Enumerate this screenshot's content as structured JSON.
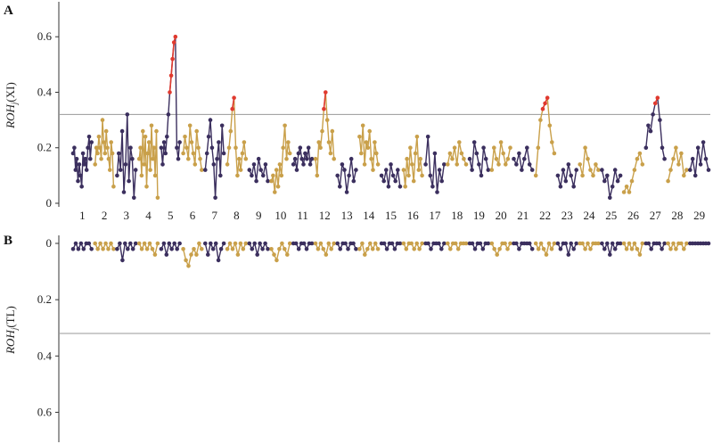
{
  "panels": {
    "A": {
      "letter": "A",
      "ylabel": "ROHₗ(XI)",
      "ylabel_main": "ROH",
      "ylabel_sub": "j",
      "ylabel_tail": "(XI)"
    },
    "B": {
      "letter": "B",
      "ylabel_main": "ROH",
      "ylabel_sub": "j",
      "ylabel_tail": "(TL)"
    }
  },
  "chart_data": [
    {
      "panel": "A",
      "type": "scatter",
      "xlabel": "",
      "ylabel": "ROHj(XI)",
      "ylim": [
        0,
        0.62
      ],
      "yticks": [
        "0",
        "0.2",
        "0.4",
        "0.6"
      ],
      "ytick_values": [
        0,
        0.2,
        0.4,
        0.6
      ],
      "threshold": 0.32,
      "categories": [
        "1",
        "2",
        "3",
        "4",
        "5",
        "6",
        "7",
        "8",
        "9",
        "10",
        "11",
        "12",
        "13",
        "14",
        "15",
        "16",
        "17",
        "18",
        "19",
        "20",
        "21",
        "22",
        "23",
        "24",
        "25",
        "26",
        "27",
        "28",
        "29"
      ],
      "colors": {
        "odd": "#3b2f5e",
        "even": "#c9a04a",
        "highlight": "#e03a2f",
        "threshold": "#9a9a9a"
      },
      "series": [
        {
          "chr": "1",
          "values": [
            0.18,
            0.2,
            0.12,
            0.16,
            0.08,
            0.14,
            0.1,
            0.06,
            0.18,
            0.14,
            0.16,
            0.12,
            0.2,
            0.24,
            0.16,
            0.22
          ]
        },
        {
          "chr": "2",
          "values": [
            0.14,
            0.2,
            0.18,
            0.24,
            0.2,
            0.16,
            0.3,
            0.22,
            0.18,
            0.26,
            0.2,
            0.16,
            0.12,
            0.22,
            0.18,
            0.06
          ]
        },
        {
          "chr": "3",
          "values": [
            0.1,
            0.18,
            0.12,
            0.26,
            0.04,
            0.14,
            0.32,
            0.08,
            0.2,
            0.16,
            0.02,
            0.12
          ]
        },
        {
          "chr": "4",
          "values": [
            0.16,
            0.2,
            0.1,
            0.26,
            0.14,
            0.24,
            0.06,
            0.18,
            0.22,
            0.12,
            0.28,
            0.16,
            0.2,
            0.1,
            0.26,
            0.02
          ]
        },
        {
          "chr": "5",
          "values": [
            0.2,
            0.14,
            0.22,
            0.18,
            0.24,
            0.32,
            0.4,
            0.46,
            0.52,
            0.58,
            0.6,
            0.2,
            0.16,
            0.22
          ],
          "highlight_from": 6,
          "highlight_to": 10
        },
        {
          "chr": "6",
          "values": [
            0.18,
            0.24,
            0.2,
            0.16,
            0.28,
            0.22,
            0.18,
            0.14,
            0.26,
            0.2,
            0.16,
            0.12
          ]
        },
        {
          "chr": "7",
          "values": [
            0.12,
            0.18,
            0.24,
            0.3,
            0.2,
            0.14,
            0.02,
            0.16,
            0.22,
            0.1,
            0.28,
            0.18
          ]
        },
        {
          "chr": "8",
          "values": [
            0.14,
            0.2,
            0.26,
            0.34,
            0.38,
            0.2,
            0.1,
            0.16,
            0.12,
            0.18,
            0.22,
            0.16
          ],
          "highlight_from": 3,
          "highlight_to": 4
        },
        {
          "chr": "9",
          "values": [
            0.12,
            0.1,
            0.14,
            0.08,
            0.16,
            0.12,
            0.1,
            0.14,
            0.08
          ]
        },
        {
          "chr": "10",
          "values": [
            0.08,
            0.1,
            0.04,
            0.12,
            0.06,
            0.14,
            0.1,
            0.2,
            0.28,
            0.16,
            0.22,
            0.18
          ]
        },
        {
          "chr": "11",
          "values": [
            0.14,
            0.16,
            0.12,
            0.18,
            0.2,
            0.16,
            0.14,
            0.18,
            0.16,
            0.2,
            0.14,
            0.16
          ]
        },
        {
          "chr": "12",
          "values": [
            0.16,
            0.1,
            0.22,
            0.2,
            0.26,
            0.34,
            0.4,
            0.3,
            0.22,
            0.18,
            0.26,
            0.16
          ],
          "highlight_from": 5,
          "highlight_to": 6
        },
        {
          "chr": "13",
          "values": [
            0.1,
            0.06,
            0.14,
            0.12,
            0.04,
            0.1,
            0.16,
            0.08,
            0.12
          ]
        },
        {
          "chr": "14",
          "values": [
            0.24,
            0.18,
            0.28,
            0.14,
            0.22,
            0.2,
            0.26,
            0.16,
            0.12,
            0.22,
            0.18,
            0.14
          ]
        },
        {
          "chr": "15",
          "values": [
            0.1,
            0.08,
            0.12,
            0.06,
            0.14,
            0.1,
            0.08,
            0.12,
            0.06
          ]
        },
        {
          "chr": "16",
          "values": [
            0.12,
            0.06,
            0.16,
            0.1,
            0.2,
            0.14,
            0.08,
            0.18,
            0.24,
            0.12,
            0.16,
            0.1
          ]
        },
        {
          "chr": "17",
          "values": [
            0.14,
            0.24,
            0.1,
            0.06,
            0.18,
            0.04,
            0.12,
            0.08,
            0.14
          ]
        },
        {
          "chr": "18",
          "values": [
            0.14,
            0.18,
            0.16,
            0.2,
            0.14,
            0.22,
            0.18,
            0.16,
            0.14
          ]
        },
        {
          "chr": "19",
          "values": [
            0.16,
            0.12,
            0.22,
            0.18,
            0.14,
            0.1,
            0.2,
            0.16,
            0.12
          ]
        },
        {
          "chr": "20",
          "values": [
            0.12,
            0.2,
            0.16,
            0.14,
            0.22,
            0.18,
            0.14,
            0.16,
            0.2
          ]
        },
        {
          "chr": "21",
          "values": [
            0.16,
            0.14,
            0.18,
            0.12,
            0.16,
            0.2,
            0.14,
            0.12
          ]
        },
        {
          "chr": "22",
          "values": [
            0.1,
            0.2,
            0.3,
            0.34,
            0.36,
            0.38,
            0.28,
            0.22,
            0.18
          ],
          "highlight_from": 3,
          "highlight_to": 5
        },
        {
          "chr": "23",
          "values": [
            0.1,
            0.06,
            0.12,
            0.08,
            0.14,
            0.1,
            0.06,
            0.12
          ]
        },
        {
          "chr": "24",
          "values": [
            0.14,
            0.1,
            0.2,
            0.16,
            0.12,
            0.1,
            0.14,
            0.12
          ]
        },
        {
          "chr": "25",
          "values": [
            0.12,
            0.08,
            0.1,
            0.02,
            0.06,
            0.12,
            0.08,
            0.1
          ]
        },
        {
          "chr": "26",
          "values": [
            0.04,
            0.06,
            0.04,
            0.08,
            0.12,
            0.16,
            0.18,
            0.14
          ]
        },
        {
          "chr": "27",
          "values": [
            0.2,
            0.28,
            0.26,
            0.32,
            0.36,
            0.38,
            0.3,
            0.2,
            0.16
          ],
          "highlight_from": 4,
          "highlight_to": 5
        },
        {
          "chr": "28",
          "values": [
            0.08,
            0.12,
            0.16,
            0.2,
            0.14,
            0.18,
            0.1,
            0.12
          ]
        },
        {
          "chr": "29",
          "values": [
            0.12,
            0.16,
            0.1,
            0.2,
            0.14,
            0.22,
            0.16,
            0.12
          ]
        }
      ]
    },
    {
      "panel": "B",
      "type": "scatter",
      "xlabel": "",
      "ylabel": "ROHj(TL)",
      "ylim": [
        0,
        0.7
      ],
      "y_inverted": true,
      "yticks": [
        "0",
        "0.2",
        "0.4",
        "0.6"
      ],
      "ytick_values": [
        0,
        0.2,
        0.4,
        0.6
      ],
      "threshold": 0.32,
      "colors": {
        "odd": "#3b2f5e",
        "even": "#c9a04a",
        "threshold": "#9a9a9a"
      },
      "series": [
        {
          "chr": "1",
          "values": [
            0.02,
            0,
            0.02,
            0,
            0.02,
            0,
            0,
            0.02
          ]
        },
        {
          "chr": "2",
          "values": [
            0,
            0.02,
            0,
            0.02,
            0,
            0.02,
            0,
            0.02
          ]
        },
        {
          "chr": "3",
          "values": [
            0.02,
            0,
            0.06,
            0,
            0.02,
            0,
            0.02,
            0
          ]
        },
        {
          "chr": "4",
          "values": [
            0,
            0.02,
            0,
            0.02,
            0,
            0.02,
            0.04,
            0
          ]
        },
        {
          "chr": "5",
          "values": [
            0.02,
            0,
            0.04,
            0,
            0.02,
            0,
            0.02,
            0
          ]
        },
        {
          "chr": "6",
          "values": [
            0.02,
            0.06,
            0.08,
            0.04,
            0.02,
            0.04,
            0,
            0.02
          ]
        },
        {
          "chr": "7",
          "values": [
            0,
            0.04,
            0,
            0.02,
            0,
            0.06,
            0.02,
            0
          ]
        },
        {
          "chr": "8",
          "values": [
            0.02,
            0,
            0.02,
            0,
            0.04,
            0,
            0.02,
            0
          ]
        },
        {
          "chr": "9",
          "values": [
            0,
            0.02,
            0,
            0.04,
            0,
            0.02,
            0,
            0.02
          ]
        },
        {
          "chr": "10",
          "values": [
            0.02,
            0.04,
            0.06,
            0.02,
            0,
            0.02,
            0.04,
            0
          ]
        },
        {
          "chr": "11",
          "values": [
            0,
            0,
            0.02,
            0,
            0,
            0.02,
            0,
            0
          ]
        },
        {
          "chr": "12",
          "values": [
            0,
            0.02,
            0,
            0.02,
            0.04,
            0,
            0.02,
            0
          ]
        },
        {
          "chr": "13",
          "values": [
            0,
            0.02,
            0,
            0,
            0.02,
            0,
            0,
            0.02
          ]
        },
        {
          "chr": "14",
          "values": [
            0.02,
            0,
            0.04,
            0.02,
            0,
            0.02,
            0,
            0.02
          ]
        },
        {
          "chr": "15",
          "values": [
            0,
            0,
            0.02,
            0,
            0,
            0.02,
            0,
            0
          ]
        },
        {
          "chr": "16",
          "values": [
            0,
            0.02,
            0,
            0,
            0.02,
            0,
            0.02,
            0
          ]
        },
        {
          "chr": "17",
          "values": [
            0,
            0,
            0.02,
            0,
            0,
            0,
            0.02,
            0
          ]
        },
        {
          "chr": "18",
          "values": [
            0,
            0.02,
            0,
            0,
            0.02,
            0,
            0,
            0
          ]
        },
        {
          "chr": "19",
          "values": [
            0,
            0,
            0.02,
            0,
            0,
            0.02,
            0,
            0
          ]
        },
        {
          "chr": "20",
          "values": [
            0,
            0.02,
            0.04,
            0.02,
            0,
            0,
            0.02,
            0
          ]
        },
        {
          "chr": "21",
          "values": [
            0,
            0,
            0.02,
            0,
            0,
            0,
            0,
            0.02
          ]
        },
        {
          "chr": "22",
          "values": [
            0,
            0.02,
            0,
            0.02,
            0.04,
            0,
            0.02,
            0
          ]
        },
        {
          "chr": "23",
          "values": [
            0,
            0.02,
            0,
            0,
            0.04,
            0,
            0.02,
            0
          ]
        },
        {
          "chr": "24",
          "values": [
            0,
            0,
            0.02,
            0,
            0.02,
            0,
            0,
            0
          ]
        },
        {
          "chr": "25",
          "values": [
            0,
            0.02,
            0,
            0.04,
            0,
            0.02,
            0,
            0
          ]
        },
        {
          "chr": "26",
          "values": [
            0,
            0.02,
            0,
            0.02,
            0,
            0.02,
            0.04,
            0
          ]
        },
        {
          "chr": "27",
          "values": [
            0,
            0,
            0.02,
            0,
            0,
            0,
            0.02,
            0
          ]
        },
        {
          "chr": "28",
          "values": [
            0,
            0.02,
            0,
            0.02,
            0,
            0,
            0.02,
            0
          ]
        },
        {
          "chr": "29",
          "values": [
            0,
            0,
            0,
            0,
            0,
            0,
            0,
            0
          ]
        }
      ]
    }
  ]
}
